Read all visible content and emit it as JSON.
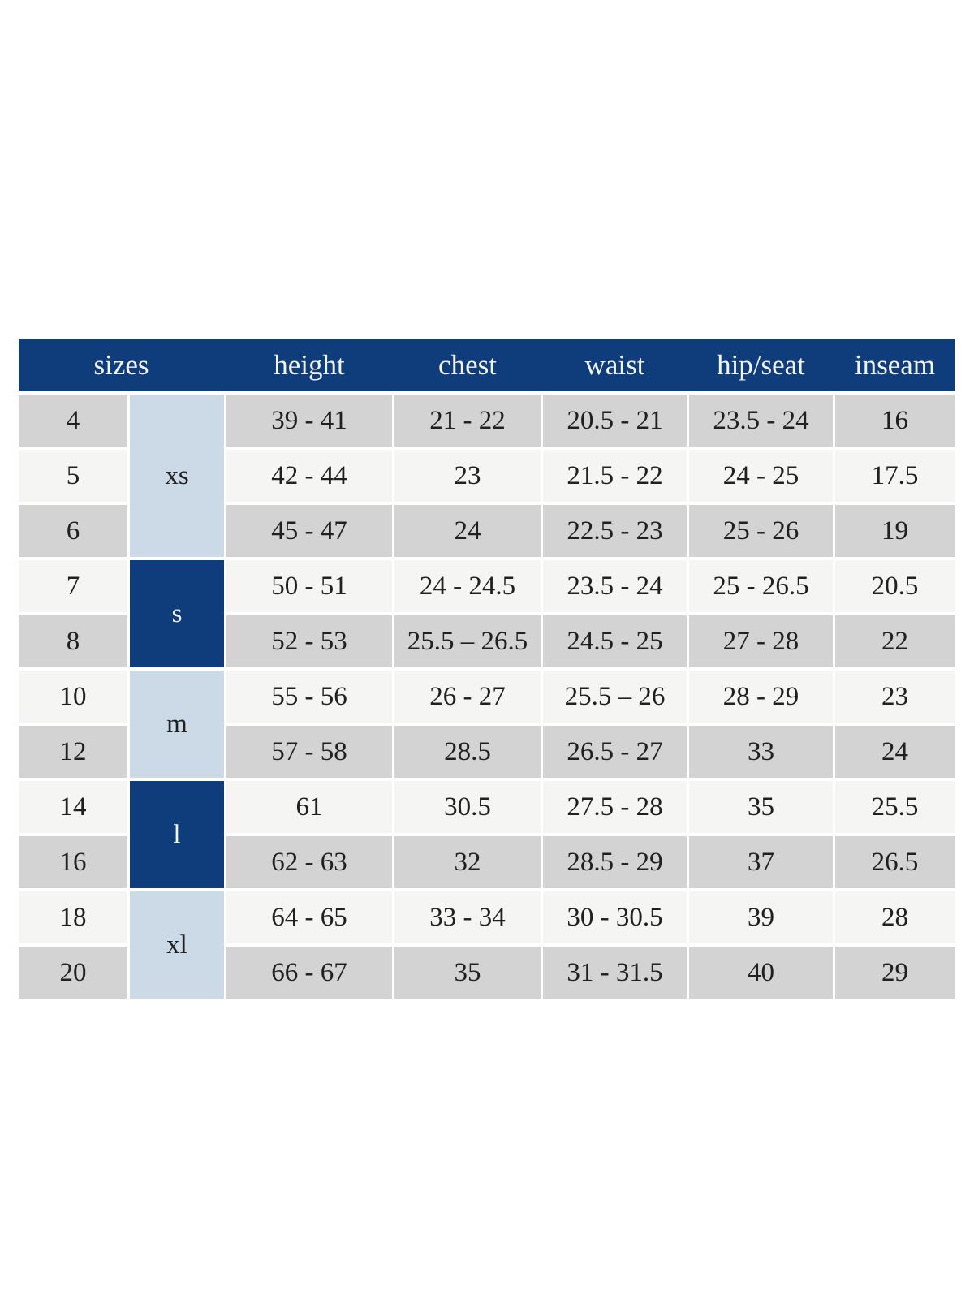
{
  "colors": {
    "header_bg": "#0f3c7a",
    "header_text": "#f2f4f7",
    "group_light_bg": "#ccd9e7",
    "group_dark_bg": "#0f3c7a",
    "row_gray_bg": "#d4d3d3",
    "row_light_bg": "#f5f5f4",
    "cell_text": "#202020",
    "page_bg": "#ffffff"
  },
  "chart_data": {
    "type": "table",
    "title": "",
    "columns": [
      "sizes",
      "height",
      "chest",
      "waist",
      "hip/seat",
      "inseam"
    ],
    "size_groups": [
      {
        "label": "xs",
        "sizes": [
          "4",
          "5",
          "6"
        ],
        "tone": "light"
      },
      {
        "label": "s",
        "sizes": [
          "7",
          "8"
        ],
        "tone": "dark"
      },
      {
        "label": "m",
        "sizes": [
          "10",
          "12"
        ],
        "tone": "light"
      },
      {
        "label": "l",
        "sizes": [
          "14",
          "16"
        ],
        "tone": "dark"
      },
      {
        "label": "xl",
        "sizes": [
          "18",
          "20"
        ],
        "tone": "light"
      }
    ],
    "rows": [
      {
        "size": "4",
        "group": "xs",
        "height": "39 - 41",
        "chest": "21 - 22",
        "waist": "20.5 - 21",
        "hip_seat": "23.5 - 24",
        "inseam": "16"
      },
      {
        "size": "5",
        "group": "xs",
        "height": "42 - 44",
        "chest": "23",
        "waist": "21.5 - 22",
        "hip_seat": "24 - 25",
        "inseam": "17.5"
      },
      {
        "size": "6",
        "group": "xs",
        "height": "45 - 47",
        "chest": "24",
        "waist": "22.5 - 23",
        "hip_seat": "25 - 26",
        "inseam": "19"
      },
      {
        "size": "7",
        "group": "s",
        "height": "50 - 51",
        "chest": "24 - 24.5",
        "waist": "23.5 - 24",
        "hip_seat": "25 - 26.5",
        "inseam": "20.5"
      },
      {
        "size": "8",
        "group": "s",
        "height": "52 - 53",
        "chest": "25.5 – 26.5",
        "waist": "24.5 - 25",
        "hip_seat": "27 - 28",
        "inseam": "22"
      },
      {
        "size": "10",
        "group": "m",
        "height": "55 - 56",
        "chest": "26 - 27",
        "waist": "25.5 – 26",
        "hip_seat": "28 - 29",
        "inseam": "23"
      },
      {
        "size": "12",
        "group": "m",
        "height": "57 - 58",
        "chest": "28.5",
        "waist": "26.5 - 27",
        "hip_seat": "33",
        "inseam": "24"
      },
      {
        "size": "14",
        "group": "l",
        "height": "61",
        "chest": "30.5",
        "waist": "27.5 - 28",
        "hip_seat": "35",
        "inseam": "25.5"
      },
      {
        "size": "16",
        "group": "l",
        "height": "62 - 63",
        "chest": "32",
        "waist": "28.5 - 29",
        "hip_seat": "37",
        "inseam": "26.5"
      },
      {
        "size": "18",
        "group": "xl",
        "height": "64 - 65",
        "chest": "33 - 34",
        "waist": "30 - 30.5",
        "hip_seat": "39",
        "inseam": "28"
      },
      {
        "size": "20",
        "group": "xl",
        "height": "66 - 67",
        "chest": "35",
        "waist": "31 - 31.5",
        "hip_seat": "40",
        "inseam": "29"
      }
    ]
  }
}
